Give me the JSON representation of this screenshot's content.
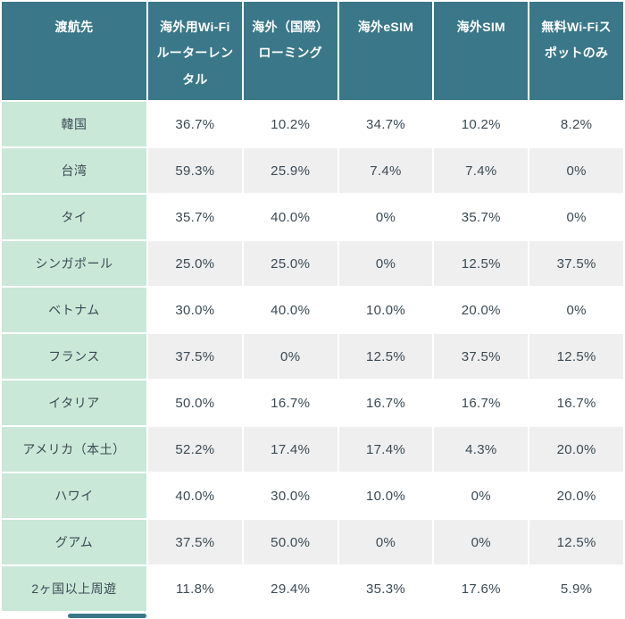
{
  "colors": {
    "header_bg": "#3a7889",
    "destination_bg": "#cae8d8",
    "row_bg": "#ffffff",
    "row_alt_bg": "#efefef",
    "header_text": "#ffffff",
    "body_text": "#3b4a54",
    "grid": "#ffffff",
    "scrollbar_thumb": "#3a7889"
  },
  "chart_data": {
    "type": "table",
    "title": "",
    "columns": [
      "渡航先",
      "海外用Wi-Fiルーターレンタル",
      "海外（国際）ローミング",
      "海外eSIM",
      "海外SIM",
      "無料Wi-Fiスポットのみ"
    ],
    "rows": [
      {
        "label": "韓国",
        "values": [
          "36.7%",
          "10.2%",
          "34.7%",
          "10.2%",
          "8.2%"
        ]
      },
      {
        "label": "台湾",
        "values": [
          "59.3%",
          "25.9%",
          "7.4%",
          "7.4%",
          "0%"
        ]
      },
      {
        "label": "タイ",
        "values": [
          "35.7%",
          "40.0%",
          "0%",
          "35.7%",
          "0%"
        ]
      },
      {
        "label": "シンガポール",
        "values": [
          "25.0%",
          "25.0%",
          "0%",
          "12.5%",
          "37.5%"
        ]
      },
      {
        "label": "ベトナム",
        "values": [
          "30.0%",
          "40.0%",
          "10.0%",
          "20.0%",
          "0%"
        ]
      },
      {
        "label": "フランス",
        "values": [
          "37.5%",
          "0%",
          "12.5%",
          "37.5%",
          "12.5%"
        ]
      },
      {
        "label": "イタリア",
        "values": [
          "50.0%",
          "16.7%",
          "16.7%",
          "16.7%",
          "16.7%"
        ]
      },
      {
        "label": "アメリカ（本土）",
        "values": [
          "52.2%",
          "17.4%",
          "17.4%",
          "4.3%",
          "20.0%"
        ]
      },
      {
        "label": "ハワイ",
        "values": [
          "40.0%",
          "30.0%",
          "10.0%",
          "0%",
          "20.0%"
        ]
      },
      {
        "label": "グアム",
        "values": [
          "37.5%",
          "50.0%",
          "0%",
          "0%",
          "12.5%"
        ]
      },
      {
        "label": "2ヶ国以上周遊",
        "values": [
          "11.8%",
          "29.4%",
          "35.3%",
          "17.6%",
          "5.9%"
        ]
      }
    ]
  }
}
